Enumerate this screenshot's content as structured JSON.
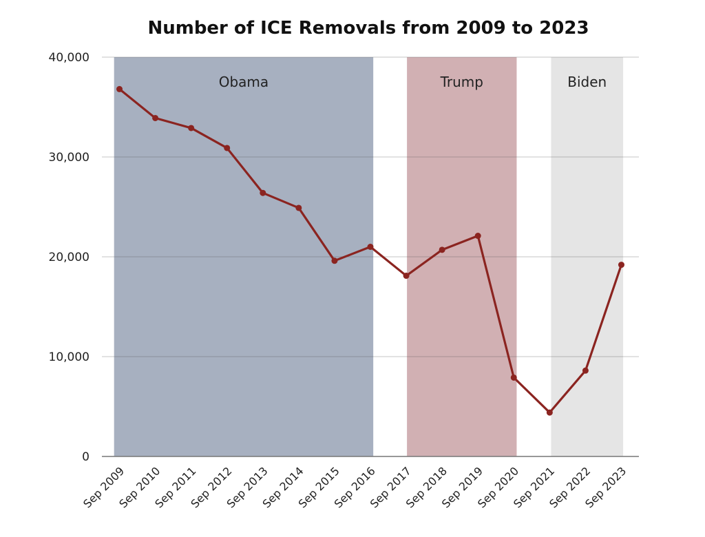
{
  "chart_data": {
    "type": "line",
    "title": "Number of ICE Removals from 2009 to 2023",
    "xlabel": "",
    "ylabel": "",
    "ylim": [
      0,
      40000
    ],
    "yticks": [
      0,
      10000,
      20000,
      30000,
      40000
    ],
    "ytick_labels": [
      "0",
      "10,000",
      "20,000",
      "30,000",
      "40,000"
    ],
    "grid": true,
    "categories": [
      "Sep 2009",
      "Sep 2010",
      "Sep 2011",
      "Sep 2012",
      "Sep 2013",
      "Sep 2014",
      "Sep 2015",
      "Sep 2016",
      "Sep 2017",
      "Sep 2018",
      "Sep 2019",
      "Sep 2020",
      "Sep 2021",
      "Sep 2022",
      "Sep 2023"
    ],
    "series": [
      {
        "name": "ICE Removals",
        "color": "#8b2420",
        "values": [
          36800,
          33900,
          32900,
          30900,
          26400,
          24900,
          19600,
          21000,
          18100,
          20700,
          22100,
          7900,
          4400,
          8600,
          19200
        ]
      }
    ],
    "regions": [
      {
        "label": "Obama",
        "start_index": -0.15,
        "end_index": 7.08,
        "color": "#a7b0c0"
      },
      {
        "label": "Trump",
        "start_index": 8.02,
        "end_index": 11.08,
        "color": "#d1b0b3"
      },
      {
        "label": "Biden",
        "start_index": 12.04,
        "end_index": 14.05,
        "color": "#e5e5e5"
      }
    ]
  }
}
